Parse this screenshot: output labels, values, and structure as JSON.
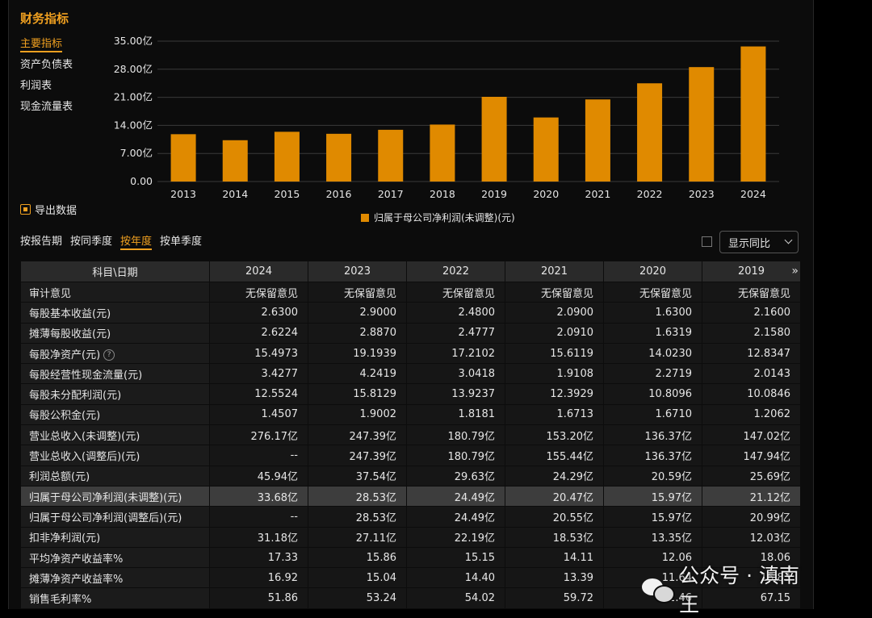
{
  "page": {
    "title": "财务指标",
    "side_nav": [
      "主要指标",
      "资产负债表",
      "利润表",
      "现金流量表"
    ],
    "export_label": "导出数据",
    "filters": [
      "按报告期",
      "按同季度",
      "按年度",
      "按单季度"
    ],
    "active_filter_index": 2,
    "yoy_toggle_label": "显示同比",
    "more_arrow": "»",
    "watermark": "公众号 · 滇南王"
  },
  "colors": {
    "accent": "#f0a020",
    "bar": "#e08a00",
    "highlight_row": "#3d3d3d"
  },
  "chart_data": {
    "type": "bar",
    "categories": [
      "2013",
      "2014",
      "2015",
      "2016",
      "2017",
      "2018",
      "2019",
      "2020",
      "2021",
      "2022",
      "2023",
      "2024"
    ],
    "series": [
      {
        "name": "归属于母公司净利润(未调整)(元)",
        "values": [
          11.8,
          10.3,
          12.4,
          11.9,
          12.9,
          14.2,
          21.12,
          15.97,
          20.47,
          24.49,
          28.53,
          33.68
        ]
      }
    ],
    "y_ticks": [
      "35.00亿",
      "28.00亿",
      "21.00亿",
      "14.00亿",
      "7.00亿",
      "0.00"
    ],
    "ylim": [
      0,
      35
    ],
    "legend_position": "bottom-center",
    "grid": true
  },
  "table": {
    "header_label": "科目\\日期",
    "columns": [
      "2024",
      "2023",
      "2022",
      "2021",
      "2020",
      "2019"
    ],
    "rows": [
      {
        "label": "审计意见",
        "values": [
          "无保留意见",
          "无保留意见",
          "无保留意见",
          "无保留意见",
          "无保留意见",
          "无保留意见"
        ]
      },
      {
        "label": "每股基本收益(元)",
        "values": [
          "2.6300",
          "2.9000",
          "2.4800",
          "2.0900",
          "1.6300",
          "2.1600"
        ]
      },
      {
        "label": "摊薄每股收益(元)",
        "values": [
          "2.6224",
          "2.8870",
          "2.4777",
          "2.0910",
          "1.6319",
          "2.1580"
        ]
      },
      {
        "label": "每股净资产(元)",
        "help": "?",
        "values": [
          "15.4973",
          "19.1939",
          "17.2102",
          "15.6119",
          "14.0230",
          "12.8347"
        ]
      },
      {
        "label": "每股经营性现金流量(元)",
        "values": [
          "3.4277",
          "4.2419",
          "3.0418",
          "1.9108",
          "2.2719",
          "2.0143"
        ]
      },
      {
        "label": "每股未分配利润(元)",
        "values": [
          "12.5524",
          "15.8129",
          "13.9237",
          "12.3929",
          "10.8096",
          "10.0846"
        ]
      },
      {
        "label": "每股公积金(元)",
        "values": [
          "1.4507",
          "1.9002",
          "1.8181",
          "1.6713",
          "1.6710",
          "1.2062"
        ]
      },
      {
        "label": "营业总收入(未调整)(元)",
        "values": [
          "276.17亿",
          "247.39亿",
          "180.79亿",
          "153.20亿",
          "136.37亿",
          "147.02亿"
        ]
      },
      {
        "label": "营业总收入(调整后)(元)",
        "values": [
          "--",
          "247.39亿",
          "180.79亿",
          "155.44亿",
          "136.37亿",
          "147.94亿"
        ]
      },
      {
        "label": "利润总额(元)",
        "values": [
          "45.94亿",
          "37.54亿",
          "29.63亿",
          "24.29亿",
          "20.59亿",
          "25.69亿"
        ]
      },
      {
        "label": "归属于母公司净利润(未调整)(元)",
        "highlight": true,
        "values": [
          "33.68亿",
          "28.53亿",
          "24.49亿",
          "20.47亿",
          "15.97亿",
          "21.12亿"
        ]
      },
      {
        "label": "归属于母公司净利润(调整后)(元)",
        "values": [
          "--",
          "28.53亿",
          "24.49亿",
          "20.55亿",
          "15.97亿",
          "20.99亿"
        ]
      },
      {
        "label": "扣非净利润(元)",
        "values": [
          "31.18亿",
          "27.11亿",
          "22.19亿",
          "18.53亿",
          "13.35亿",
          "12.03亿"
        ]
      },
      {
        "label": "平均净资产收益率%",
        "values": [
          "17.33",
          "15.86",
          "15.15",
          "14.11",
          "12.06",
          "18.06"
        ]
      },
      {
        "label": "摊薄净资产收益率%",
        "values": [
          "16.92",
          "15.04",
          "14.40",
          "13.39",
          "11.64",
          "16.83"
        ]
      },
      {
        "label": "销售毛利率%",
        "values": [
          "51.86",
          "53.24",
          "54.02",
          "59.72",
          "62.46",
          "67.15"
        ]
      }
    ]
  }
}
